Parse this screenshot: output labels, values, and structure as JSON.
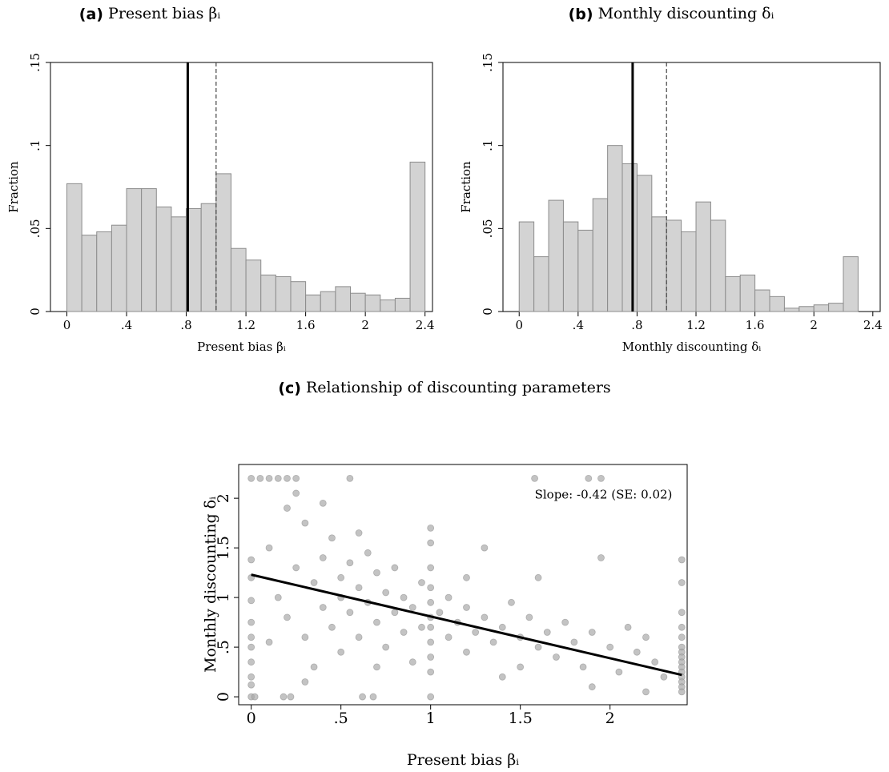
{
  "chart_data": [
    {
      "type": "histogram",
      "title_tag": "(a)",
      "title": "Present bias βᵢ",
      "xlabel": "Present bias βᵢ",
      "ylabel": "Fraction",
      "bins": [
        0,
        0.1,
        0.2,
        0.3,
        0.4,
        0.5,
        0.6,
        0.7,
        0.8,
        0.9,
        1.0,
        1.1,
        1.2,
        1.3,
        1.4,
        1.5,
        1.6,
        1.7,
        1.8,
        1.9,
        2.0,
        2.1,
        2.2,
        2.3,
        2.4
      ],
      "values": [
        0.077,
        0.046,
        0.048,
        0.052,
        0.074,
        0.074,
        0.063,
        0.057,
        0.062,
        0.065,
        0.083,
        0.038,
        0.031,
        0.022,
        0.021,
        0.018,
        0.01,
        0.012,
        0.015,
        0.011,
        0.01,
        0.007,
        0.008,
        0.09
      ],
      "color": "#d3d3d3",
      "vlines": [
        {
          "x": 0.81,
          "style": "solid"
        },
        {
          "x": 1.0,
          "style": "dashed"
        }
      ],
      "xlim": [
        -0.11,
        2.45
      ],
      "ylim": [
        0,
        0.15
      ],
      "xticks": [
        0,
        {
          "value": 0.4,
          "label": ".4"
        },
        {
          "value": 0.8,
          "label": ".8"
        },
        1.2,
        1.6,
        2,
        2.4
      ],
      "yticks": [
        0,
        {
          "value": 0.05,
          "label": ".05"
        },
        {
          "value": 0.1,
          "label": ".1"
        },
        {
          "value": 0.15,
          "label": ".15"
        }
      ]
    },
    {
      "type": "histogram",
      "title_tag": "(b)",
      "title": "Monthly discounting δᵢ",
      "xlabel": "Monthly discounting δᵢ",
      "ylabel": "Fraction",
      "bins": [
        0,
        0.1,
        0.2,
        0.3,
        0.4,
        0.5,
        0.6,
        0.7,
        0.8,
        0.9,
        1.0,
        1.1,
        1.2,
        1.3,
        1.4,
        1.5,
        1.6,
        1.7,
        1.8,
        1.9,
        2.0,
        2.1,
        2.2,
        2.3
      ],
      "values": [
        0.054,
        0.033,
        0.067,
        0.054,
        0.049,
        0.068,
        0.1,
        0.089,
        0.082,
        0.057,
        0.055,
        0.048,
        0.066,
        0.055,
        0.021,
        0.022,
        0.013,
        0.009,
        0.002,
        0.003,
        0.004,
        0.005,
        0.033
      ],
      "color": "#d3d3d3",
      "vlines": [
        {
          "x": 0.77,
          "style": "solid"
        },
        {
          "x": 1.0,
          "style": "dashed"
        }
      ],
      "xlim": [
        -0.11,
        2.45
      ],
      "ylim": [
        0,
        0.15
      ],
      "xticks": [
        0,
        {
          "value": 0.4,
          "label": ".4"
        },
        {
          "value": 0.8,
          "label": ".8"
        },
        1.2,
        1.6,
        2,
        2.4
      ],
      "yticks": [
        0,
        {
          "value": 0.05,
          "label": ".05"
        },
        {
          "value": 0.1,
          "label": ".1"
        },
        {
          "value": 0.15,
          "label": ".15"
        }
      ]
    },
    {
      "type": "scatter",
      "title_tag": "(c)",
      "title": "Relationship of discounting parameters",
      "xlabel": "Present bias βᵢ",
      "ylabel": "Monthly discounting δᵢ",
      "annotation": "Slope: -0.42 (SE: 0.02)",
      "color": "#a9a9a9",
      "x": [
        0,
        0.05,
        0.1,
        0.15,
        0.2,
        0.25,
        1.58,
        1.88,
        1.95,
        0.55,
        0,
        0.02,
        0.18,
        0.22,
        0.62,
        0.68,
        1,
        0,
        0,
        0,
        0,
        0,
        0,
        0,
        0,
        0,
        2.4,
        2.4,
        2.4,
        2.4,
        2.4,
        2.4,
        2.4,
        2.4,
        2.4,
        2.4,
        2.4,
        2.4,
        2.4,
        2.4,
        2.4,
        1,
        1,
        1,
        1,
        1,
        1,
        1,
        1,
        1,
        1,
        0.1,
        0.15,
        0.2,
        0.25,
        0.3,
        0.3,
        0.35,
        0.35,
        0.4,
        0.4,
        0.45,
        0.45,
        0.5,
        0.5,
        0.5,
        0.55,
        0.55,
        0.6,
        0.6,
        0.65,
        0.65,
        0.7,
        0.7,
        0.75,
        0.75,
        0.8,
        0.8,
        0.85,
        0.85,
        0.9,
        0.9,
        0.95,
        0.95,
        1.05,
        1.1,
        1.1,
        1.15,
        1.2,
        1.2,
        1.25,
        1.3,
        1.3,
        1.35,
        1.4,
        1.45,
        1.5,
        1.5,
        1.55,
        1.6,
        1.6,
        1.65,
        1.7,
        1.75,
        1.8,
        1.85,
        1.9,
        1.95,
        2.0,
        2.05,
        2.1,
        2.15,
        2.2,
        2.25,
        2.3,
        0.2,
        0.25,
        0.4,
        0.1,
        0.3,
        1.4,
        1.9,
        2.2,
        0.7,
        0.6,
        1.2
      ],
      "y": [
        2.2,
        2.2,
        2.2,
        2.2,
        2.2,
        2.2,
        2.2,
        2.2,
        2.2,
        2.2,
        0,
        0,
        0,
        0,
        0,
        0,
        0,
        1.38,
        1.2,
        0.97,
        0.75,
        0.6,
        0.5,
        0.35,
        0.2,
        0.12,
        1.38,
        1.15,
        0.85,
        0.7,
        0.6,
        0.5,
        0.45,
        0.4,
        0.35,
        0.3,
        0.25,
        0.2,
        0.15,
        0.1,
        0.05,
        1.7,
        1.55,
        1.3,
        1.1,
        0.95,
        0.8,
        0.7,
        0.55,
        0.4,
        0.25,
        1.5,
        1.0,
        0.8,
        1.3,
        1.75,
        0.6,
        1.15,
        0.3,
        1.4,
        0.9,
        1.6,
        0.7,
        1.2,
        1.0,
        0.45,
        1.35,
        0.85,
        1.1,
        0.6,
        1.45,
        0.95,
        0.75,
        1.25,
        0.5,
        1.05,
        0.85,
        1.3,
        0.65,
        1.0,
        0.9,
        0.35,
        1.15,
        0.7,
        0.85,
        0.6,
        1.0,
        0.75,
        0.9,
        0.45,
        0.65,
        1.5,
        0.8,
        0.55,
        0.7,
        0.95,
        0.6,
        0.3,
        0.8,
        0.5,
        1.2,
        0.65,
        0.4,
        0.75,
        0.55,
        0.3,
        0.65,
        1.4,
        0.5,
        0.25,
        0.7,
        0.45,
        0.6,
        0.35,
        0.2,
        1.9,
        2.05,
        1.95,
        0.55,
        0.15,
        0.2,
        0.1,
        0.05,
        0.3,
        1.65,
        1.2
      ],
      "fit": {
        "x": [
          0,
          2.4
        ],
        "y": [
          1.23,
          0.22
        ]
      },
      "xlim": [
        -0.07,
        2.43
      ],
      "ylim": [
        -0.08,
        2.34
      ],
      "xticks": [
        0,
        {
          "value": 0.5,
          "label": ".5"
        },
        1,
        1.5,
        2
      ],
      "yticks": [
        0,
        {
          "value": 0.5,
          "label": ".5"
        },
        1,
        1.5,
        2
      ]
    }
  ]
}
